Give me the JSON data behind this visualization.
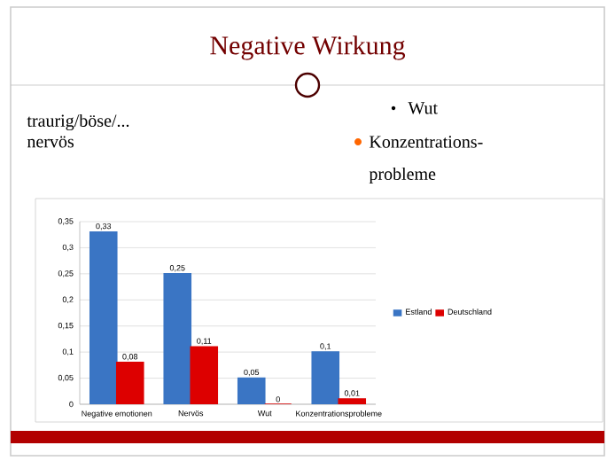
{
  "chart_data": {
    "type": "bar",
    "title": "Negative Wirkung",
    "annotations": [
      "traurig/böse/...",
      "nervös",
      "Wut",
      "Konzentrations-",
      "probleme"
    ],
    "categories": [
      "Negative emotionen",
      "Nervös",
      "Wut",
      "Konzentrationsprobleme"
    ],
    "series": [
      {
        "name": "Estland",
        "color": "#3a75c4",
        "values": [
          0.33,
          0.25,
          0.05,
          0.1
        ],
        "value_labels": [
          "0,33",
          "0,25",
          "0,05",
          "0,1"
        ]
      },
      {
        "name": "Deutschland",
        "color": "#dd0000",
        "values": [
          0.08,
          0.11,
          0,
          0.01
        ],
        "value_labels": [
          "0,08",
          "0,11",
          "0",
          "0,01"
        ]
      }
    ],
    "ylim": [
      0,
      0.35
    ],
    "yticks": [
      0,
      {
        "value": 0.05,
        "label": "0,05"
      },
      {
        "value": 0.1,
        "label": "0,1"
      },
      {
        "value": 0.15,
        "label": "0,15"
      },
      {
        "value": 0.2,
        "label": "0,2"
      },
      {
        "value": 0.25,
        "label": "0,25"
      },
      {
        "value": 0.3,
        "label": "0,3"
      },
      {
        "value": 0.35,
        "label": "0,35"
      }
    ],
    "grid": "y",
    "legend": "right"
  }
}
